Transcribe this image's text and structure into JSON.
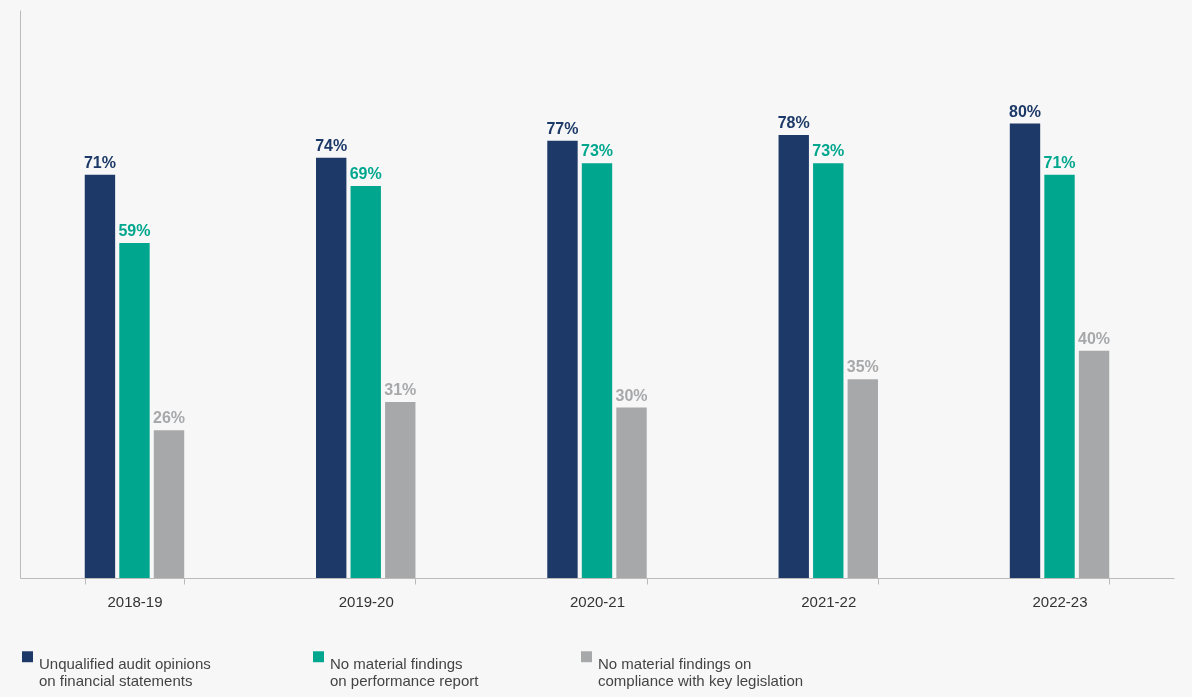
{
  "chart_data": {
    "type": "bar",
    "categories": [
      "2018-19",
      "2019-20",
      "2020-21",
      "2021-22",
      "2022-23"
    ],
    "series": [
      {
        "name": "Unqualified audit opinions on financial statements",
        "color": "#1c3968",
        "values": [
          71,
          74,
          77,
          78,
          80
        ],
        "value_labels": [
          "71%",
          "74%",
          "77%",
          "78%",
          "80%"
        ]
      },
      {
        "name": "No material findings on performance report",
        "color": "#00a78e",
        "values": [
          59,
          69,
          73,
          73,
          71
        ],
        "value_labels": [
          "59%",
          "69%",
          "73%",
          "73%",
          "71%"
        ]
      },
      {
        "name": "No material findings on compliance with key legislation",
        "color": "#a7a8aa",
        "values": [
          26,
          31,
          30,
          35,
          40
        ],
        "value_labels": [
          "26%",
          "31%",
          "30%",
          "35%",
          "40%"
        ]
      }
    ],
    "ylim": [
      0,
      100
    ],
    "tick_labels": "x",
    "grid": false,
    "legend": "bottom"
  }
}
